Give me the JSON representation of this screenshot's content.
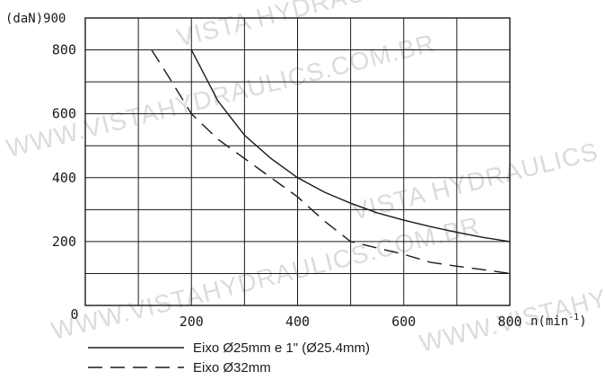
{
  "chart_data": {
    "type": "line",
    "title": "",
    "ylabel": "(daN)900",
    "xlabel": "n(min",
    "xlabel_sup": "-1",
    "xlim": [
      0,
      800
    ],
    "ylim": [
      0,
      900
    ],
    "x_ticks": [
      200,
      400,
      600,
      800
    ],
    "y_ticks": [
      200,
      400,
      600,
      800
    ],
    "x_zero_label": "0",
    "grid": true,
    "series": [
      {
        "name": "Eixo Ø25mm e 1\" (Ø25.4mm)",
        "style": "solid",
        "color": "#1a1a1a",
        "x": [
          200,
          250,
          300,
          350,
          400,
          450,
          500,
          550,
          600,
          650,
          700,
          750,
          800
        ],
        "y": [
          800,
          640,
          533,
          460,
          400,
          355,
          320,
          290,
          267,
          247,
          229,
          213,
          200
        ]
      },
      {
        "name": "Eixo Ø32mm",
        "style": "dashed",
        "color": "#1a1a1a",
        "x": [
          125,
          150,
          200,
          250,
          300,
          350,
          400,
          450,
          500,
          550,
          600,
          650,
          700,
          750,
          800
        ],
        "y": [
          800,
          735,
          600,
          520,
          460,
          400,
          340,
          265,
          200,
          180,
          160,
          135,
          123,
          112,
          100
        ]
      }
    ],
    "legend": {
      "placement": "bottom-left"
    }
  },
  "watermark": {
    "lines": [
      "WWW.VISTAHYDRAULICS.COM.BR",
      "VISTA HYDRAULICS",
      "WWW.VISTAHYDRAULICS.COM.BR",
      "VISTA HYDRAULICS",
      "WWW.VISTAHYDRAULICS.COM.BR"
    ]
  }
}
